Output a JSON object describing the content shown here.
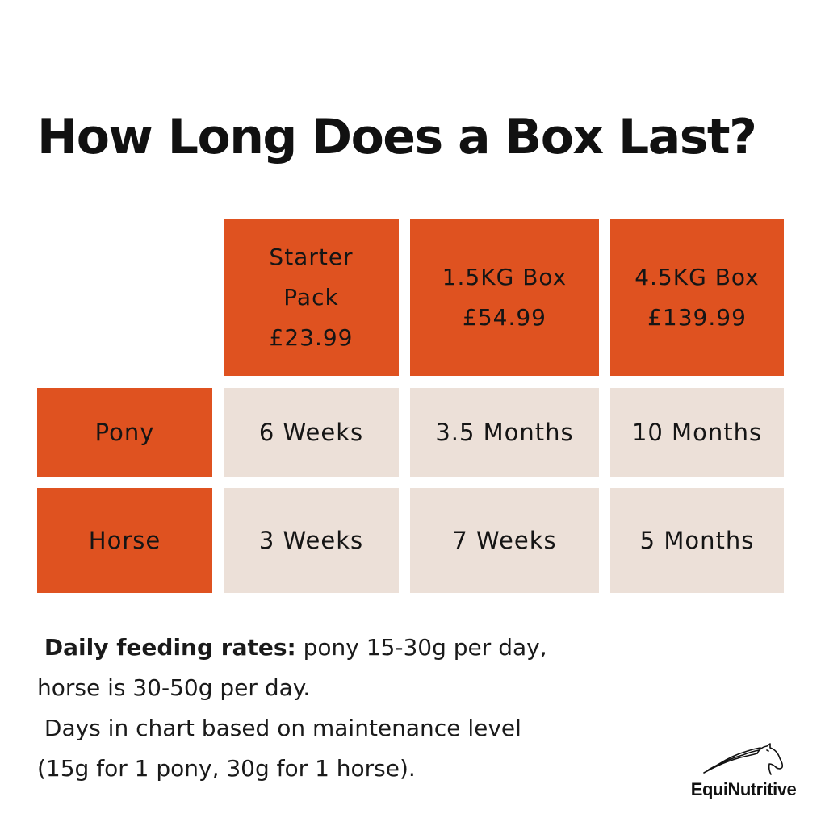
{
  "title": "How Long Does a Box Last?",
  "colors": {
    "header_bg": "#df5220",
    "cell_bg": "#ece0d8",
    "text": "#151515"
  },
  "table": {
    "columns": [
      {
        "lines": [
          "Starter",
          "Pack",
          "£23.99"
        ]
      },
      {
        "lines": [
          "1.5KG Box",
          "£54.99"
        ]
      },
      {
        "lines": [
          "4.5KG Box",
          "£139.99"
        ]
      }
    ],
    "rows": [
      {
        "label": "Pony",
        "values": [
          "6 Weeks",
          "3.5 Months",
          "10 Months"
        ]
      },
      {
        "label": "Horse",
        "values": [
          "3 Weeks",
          "7 Weeks",
          "5 Months"
        ]
      }
    ]
  },
  "notes": {
    "bold_label": "Daily feeding rates:",
    "line1_rest": " pony 15-30g per day,",
    "line2": "horse is 30-50g per day.",
    "line3": " Days in chart based on maintenance level",
    "line4": "(15g for 1 pony, 30g for 1 horse)."
  },
  "logo": {
    "text": "EquiNutritive",
    "icon": "horse-head-icon"
  }
}
